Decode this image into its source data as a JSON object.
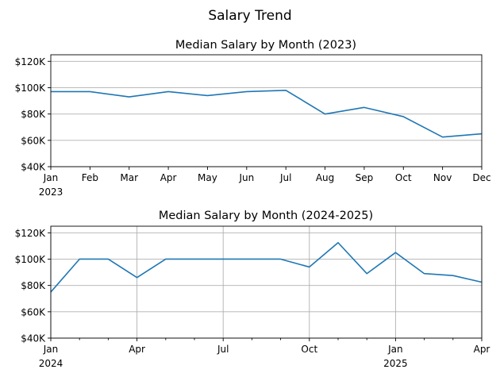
{
  "figure": {
    "suptitle": "Salary Trend"
  },
  "colors": {
    "line": "#1f77b4",
    "grid": "#b0b0b0"
  },
  "chart_data": [
    {
      "type": "line",
      "title": "Median Salary by Month (2023)",
      "xlabel": "",
      "ylabel": "",
      "grid": "y",
      "ylim": [
        40000,
        125000
      ],
      "yticks": [
        40000,
        60000,
        80000,
        100000,
        120000
      ],
      "ytick_labels": [
        "$40K",
        "$60K",
        "$80K",
        "$100K",
        "$120K"
      ],
      "x": [
        "2023-01",
        "2023-02",
        "2023-03",
        "2023-04",
        "2023-05",
        "2023-06",
        "2023-07",
        "2023-08",
        "2023-09",
        "2023-10",
        "2023-11",
        "2023-12"
      ],
      "values": [
        97000,
        97000,
        93000,
        97000,
        94000,
        97000,
        98000,
        80000,
        85000,
        78000,
        62500,
        65000
      ],
      "xticks": [
        {
          "at": "2023-01",
          "label": "Jan",
          "sublabel": "2023"
        },
        {
          "at": "2023-02",
          "label": "Feb"
        },
        {
          "at": "2023-03",
          "label": "Mar"
        },
        {
          "at": "2023-04",
          "label": "Apr"
        },
        {
          "at": "2023-05",
          "label": "May"
        },
        {
          "at": "2023-06",
          "label": "Jun"
        },
        {
          "at": "2023-07",
          "label": "Jul"
        },
        {
          "at": "2023-08",
          "label": "Aug"
        },
        {
          "at": "2023-09",
          "label": "Sep"
        },
        {
          "at": "2023-10",
          "label": "Oct"
        },
        {
          "at": "2023-11",
          "label": "Nov"
        },
        {
          "at": "2023-12",
          "label": "Dec"
        }
      ],
      "xminor": []
    },
    {
      "type": "line",
      "title": "Median Salary by Month (2024-2025)",
      "xlabel": "",
      "ylabel": "",
      "grid": "both",
      "ylim": [
        40000,
        125000
      ],
      "yticks": [
        40000,
        60000,
        80000,
        100000,
        120000
      ],
      "ytick_labels": [
        "$40K",
        "$60K",
        "$80K",
        "$100K",
        "$120K"
      ],
      "x": [
        "2024-01",
        "2024-02",
        "2024-03",
        "2024-04",
        "2024-05",
        "2024-06",
        "2024-07",
        "2024-08",
        "2024-09",
        "2024-10",
        "2024-11",
        "2024-12",
        "2025-01",
        "2025-02",
        "2025-03",
        "2025-04"
      ],
      "values": [
        75000,
        100000,
        100000,
        86000,
        100000,
        100000,
        100000,
        100000,
        100000,
        94000,
        112500,
        89000,
        105000,
        89000,
        87500,
        82500
      ],
      "xticks": [
        {
          "at": "2024-01",
          "label": "Jan",
          "sublabel": "2024"
        },
        {
          "at": "2024-04",
          "label": "Apr"
        },
        {
          "at": "2024-07",
          "label": "Jul"
        },
        {
          "at": "2024-10",
          "label": "Oct"
        },
        {
          "at": "2025-01",
          "label": "Jan",
          "sublabel": "2025"
        },
        {
          "at": "2025-04",
          "label": "Apr"
        }
      ],
      "xminor": [
        "2024-02",
        "2024-03",
        "2024-05",
        "2024-06",
        "2024-08",
        "2024-09",
        "2024-11",
        "2024-12",
        "2025-02",
        "2025-03"
      ]
    }
  ]
}
